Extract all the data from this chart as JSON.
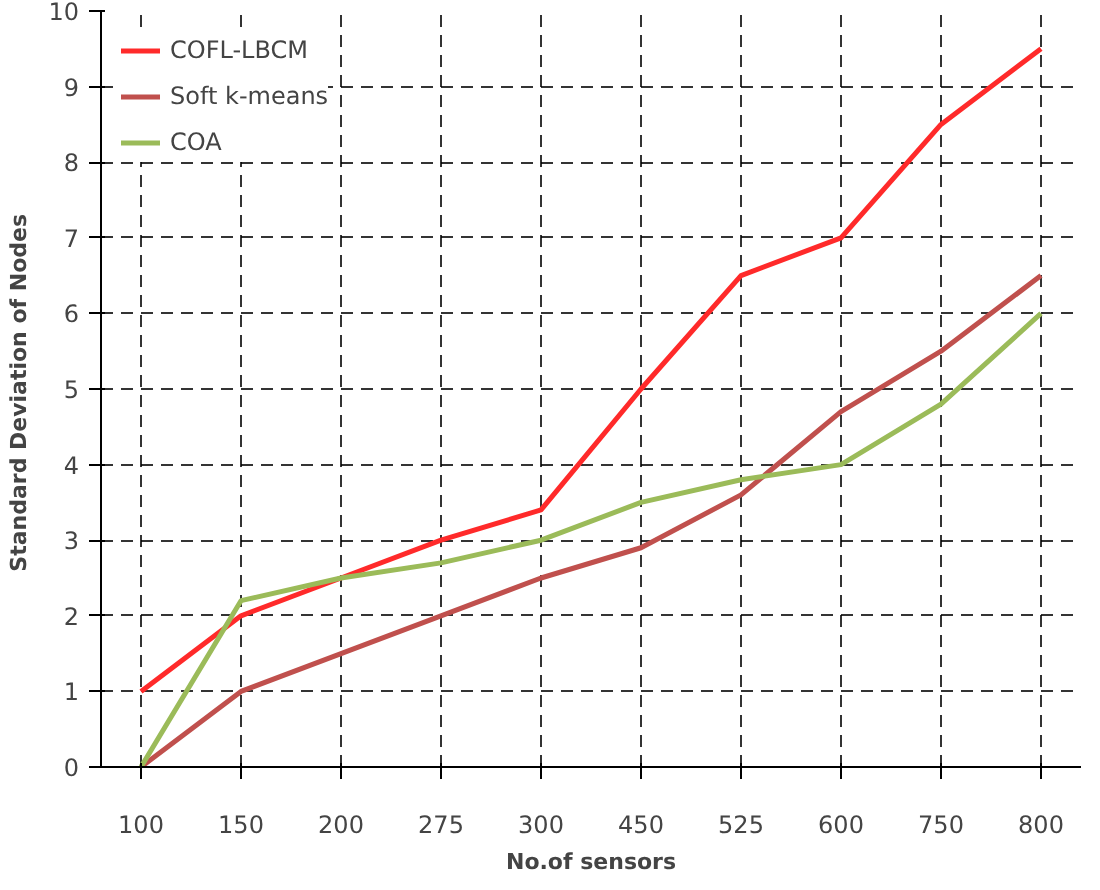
{
  "chart_data": {
    "type": "line",
    "xlabel": "No.of sensors",
    "ylabel": "Standard Deviation  of Nodes",
    "categories": [
      "100",
      "150",
      "200",
      "275",
      "300",
      "450",
      "525",
      "600",
      "750",
      "800"
    ],
    "series": [
      {
        "name": "COFL-LBCM",
        "color": "#ff2a2a",
        "values": [
          1,
          2,
          2.5,
          3,
          3.4,
          5,
          6.5,
          7,
          8.5,
          9.5
        ]
      },
      {
        "name": "Soft k-means",
        "color": "#c0504d",
        "values": [
          0,
          1,
          1.5,
          2,
          2.5,
          2.9,
          3.6,
          4.7,
          5.5,
          6.5
        ]
      },
      {
        "name": "COA",
        "color": "#9bbb59",
        "values": [
          0,
          2.2,
          2.5,
          2.7,
          3,
          3.5,
          3.8,
          4,
          4.8,
          6
        ]
      }
    ],
    "ylim": [
      0,
      10
    ],
    "yticks": [
      0,
      1,
      2,
      3,
      4,
      5,
      6,
      7,
      8,
      9,
      10
    ],
    "grid": true,
    "legend": "top left",
    "line_style": "solid"
  }
}
